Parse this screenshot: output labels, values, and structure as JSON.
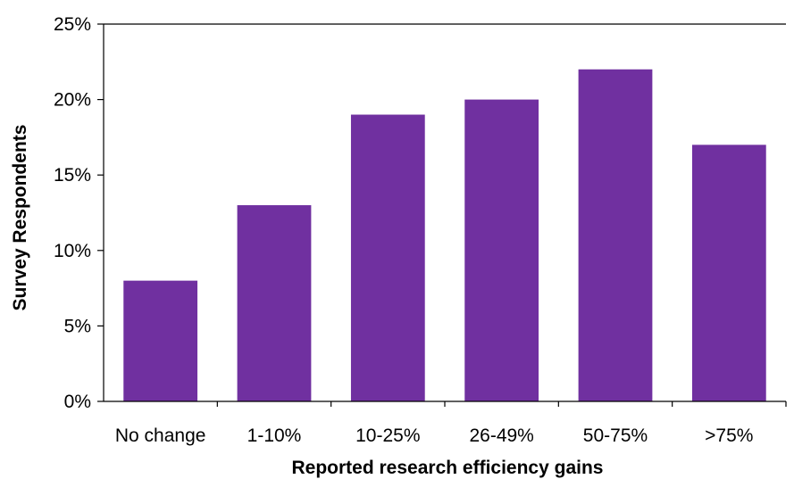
{
  "chart_data": {
    "type": "bar",
    "categories": [
      "No change",
      "1-10%",
      "10-25%",
      "26-49%",
      "50-75%",
      ">75%"
    ],
    "values": [
      8,
      13,
      19,
      20,
      22,
      17
    ],
    "xlabel": "Reported research efficiency gains",
    "ylabel": "Survey Respondents",
    "ylim": [
      0,
      25
    ],
    "yticks": [
      0,
      5,
      10,
      15,
      20,
      25
    ],
    "ytick_labels": [
      "0%",
      "5%",
      "10%",
      "15%",
      "20%",
      "25%"
    ],
    "bar_color": "#7030a0",
    "grid": false,
    "legend": "none"
  }
}
